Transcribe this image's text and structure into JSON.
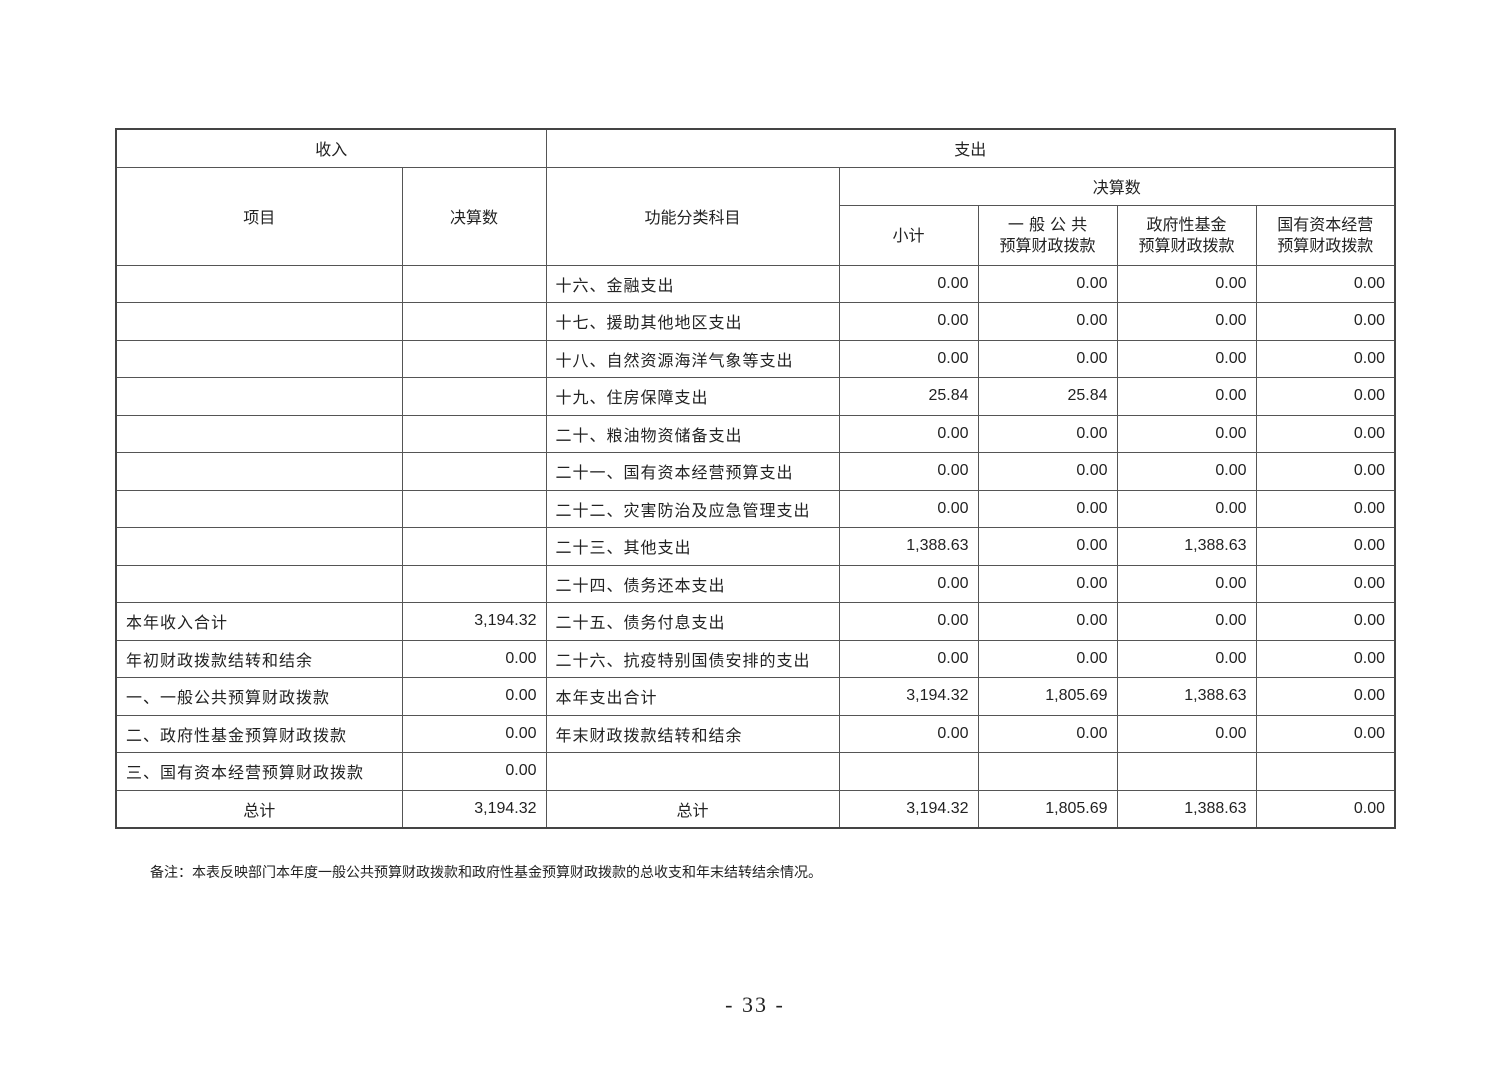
{
  "header": {
    "income": "收入",
    "expense": "支出",
    "item": "项目",
    "final_amount": "决算数",
    "function_category": "功能分类科目",
    "final_amount_expense": "决算数",
    "subtotal": "小计",
    "general_public": "一 般 公 共\n预算财政拨款",
    "gov_fund": "政府性基金\n预算财政拨款",
    "state_capital": "国有资本经营\n预算财政拨款"
  },
  "rows": [
    [
      "",
      "",
      "十六、金融支出",
      "0.00",
      "0.00",
      "0.00",
      "0.00"
    ],
    [
      "",
      "",
      "十七、援助其他地区支出",
      "0.00",
      "0.00",
      "0.00",
      "0.00"
    ],
    [
      "",
      "",
      "十八、自然资源海洋气象等支出",
      "0.00",
      "0.00",
      "0.00",
      "0.00"
    ],
    [
      "",
      "",
      "十九、住房保障支出",
      "25.84",
      "25.84",
      "0.00",
      "0.00"
    ],
    [
      "",
      "",
      "二十、粮油物资储备支出",
      "0.00",
      "0.00",
      "0.00",
      "0.00"
    ],
    [
      "",
      "",
      "二十一、国有资本经营预算支出",
      "0.00",
      "0.00",
      "0.00",
      "0.00"
    ],
    [
      "",
      "",
      "二十二、灾害防治及应急管理支出",
      "0.00",
      "0.00",
      "0.00",
      "0.00"
    ],
    [
      "",
      "",
      "二十三、其他支出",
      "1,388.63",
      "0.00",
      "1,388.63",
      "0.00"
    ],
    [
      "",
      "",
      "二十四、债务还本支出",
      "0.00",
      "0.00",
      "0.00",
      "0.00"
    ],
    [
      "本年收入合计",
      "3,194.32",
      "二十五、债务付息支出",
      "0.00",
      "0.00",
      "0.00",
      "0.00"
    ],
    [
      "年初财政拨款结转和结余",
      "0.00",
      "二十六、抗疫特别国债安排的支出",
      "0.00",
      "0.00",
      "0.00",
      "0.00"
    ],
    [
      "一、一般公共预算财政拨款",
      "0.00",
      "本年支出合计",
      "3,194.32",
      "1,805.69",
      "1,388.63",
      "0.00"
    ],
    [
      "二、政府性基金预算财政拨款",
      "0.00",
      "年末财政拨款结转和结余",
      "0.00",
      "0.00",
      "0.00",
      "0.00"
    ],
    [
      "三、国有资本经营预算财政拨款",
      "0.00",
      "",
      "",
      "",
      "",
      ""
    ],
    [
      "总计",
      "3,194.32",
      "总计",
      "3,194.32",
      "1,805.69",
      "1,388.63",
      "0.00"
    ]
  ],
  "note": "备注：本表反映部门本年度一般公共预算财政拨款和政府性基金预算财政拨款的总收支和年末结转结余情况。",
  "page_number": "- 33 -"
}
